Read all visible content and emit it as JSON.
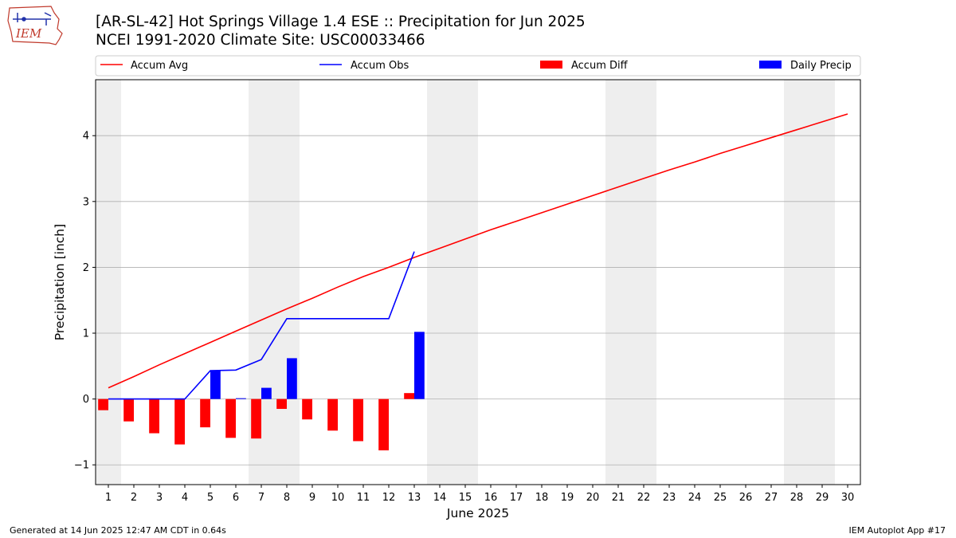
{
  "logo": {
    "text": "IEM"
  },
  "header": {
    "title_line1": "[AR-SL-42] Hot Springs Village 1.4 ESE :: Precipitation for Jun 2025",
    "title_line2": "NCEI 1991-2020 Climate Site: USC00033466"
  },
  "footer": {
    "left": "Generated at 14 Jun 2025 12:47 AM CDT in 0.64s",
    "right": "IEM Autoplot App #17"
  },
  "colors": {
    "accum_avg": "#ff0000",
    "accum_obs": "#0000ff",
    "accum_diff": "#ff0000",
    "daily_precip": "#0000ff",
    "weekend_shade": "#eeeeee",
    "grid": "#b0b0b0"
  },
  "chart_data": {
    "type": "bar",
    "xlabel": "June 2025",
    "ylabel": "Precipitation [inch]",
    "xlim": [
      0.5,
      30.5
    ],
    "ylim": [
      -1.3,
      4.85
    ],
    "grid": true,
    "legend_position": "top",
    "x_ticks": [
      1,
      2,
      3,
      4,
      5,
      6,
      7,
      8,
      9,
      10,
      11,
      12,
      13,
      14,
      15,
      16,
      17,
      18,
      19,
      20,
      21,
      22,
      23,
      24,
      25,
      26,
      27,
      28,
      29,
      30
    ],
    "y_ticks": [
      -1,
      0,
      1,
      2,
      3,
      4
    ],
    "y_tick_labels": [
      "−1",
      "0",
      "1",
      "2",
      "3",
      "4"
    ],
    "weekend_days": [
      1,
      7,
      8,
      14,
      15,
      21,
      22,
      28,
      29
    ],
    "legend": [
      {
        "name": "Accum Avg",
        "kind": "line"
      },
      {
        "name": "Accum Obs",
        "kind": "line"
      },
      {
        "name": "Accum Diff",
        "kind": "bar"
      },
      {
        "name": "Daily Precip",
        "kind": "bar"
      }
    ],
    "series": [
      {
        "name": "Accum Avg",
        "kind": "line",
        "x": [
          1,
          2,
          3,
          4,
          5,
          6,
          7,
          8,
          9,
          10,
          11,
          12,
          13,
          14,
          15,
          16,
          17,
          18,
          19,
          20,
          21,
          22,
          23,
          24,
          25,
          26,
          27,
          28,
          29,
          30
        ],
        "values": [
          0.17,
          0.34,
          0.52,
          0.69,
          0.86,
          1.03,
          1.2,
          1.37,
          1.53,
          1.7,
          1.86,
          2.0,
          2.15,
          2.29,
          2.43,
          2.57,
          2.7,
          2.83,
          2.96,
          3.09,
          3.22,
          3.35,
          3.48,
          3.6,
          3.73,
          3.85,
          3.97,
          4.09,
          4.21,
          4.33
        ]
      },
      {
        "name": "Accum Obs",
        "kind": "line",
        "x": [
          1,
          2,
          3,
          4,
          5,
          6,
          7,
          8,
          9,
          10,
          11,
          12,
          13
        ],
        "values": [
          0.0,
          0.0,
          0.0,
          0.0,
          0.43,
          0.44,
          0.6,
          1.22,
          1.22,
          1.22,
          1.22,
          1.22,
          2.24
        ]
      },
      {
        "name": "Accum Diff",
        "kind": "bar",
        "x": [
          1,
          2,
          3,
          4,
          5,
          6,
          7,
          8,
          9,
          10,
          11,
          12,
          13
        ],
        "values": [
          -0.17,
          -0.34,
          -0.52,
          -0.69,
          -0.43,
          -0.59,
          -0.6,
          -0.15,
          -0.31,
          -0.48,
          -0.64,
          -0.78,
          0.09
        ]
      },
      {
        "name": "Daily Precip",
        "kind": "bar",
        "x": [
          1,
          2,
          3,
          4,
          5,
          6,
          7,
          8,
          9,
          10,
          11,
          12,
          13
        ],
        "values": [
          0.0,
          0.0,
          0.0,
          0.0,
          0.43,
          0.01,
          0.17,
          0.62,
          0.0,
          0.0,
          0.0,
          0.0,
          1.02
        ]
      }
    ]
  }
}
